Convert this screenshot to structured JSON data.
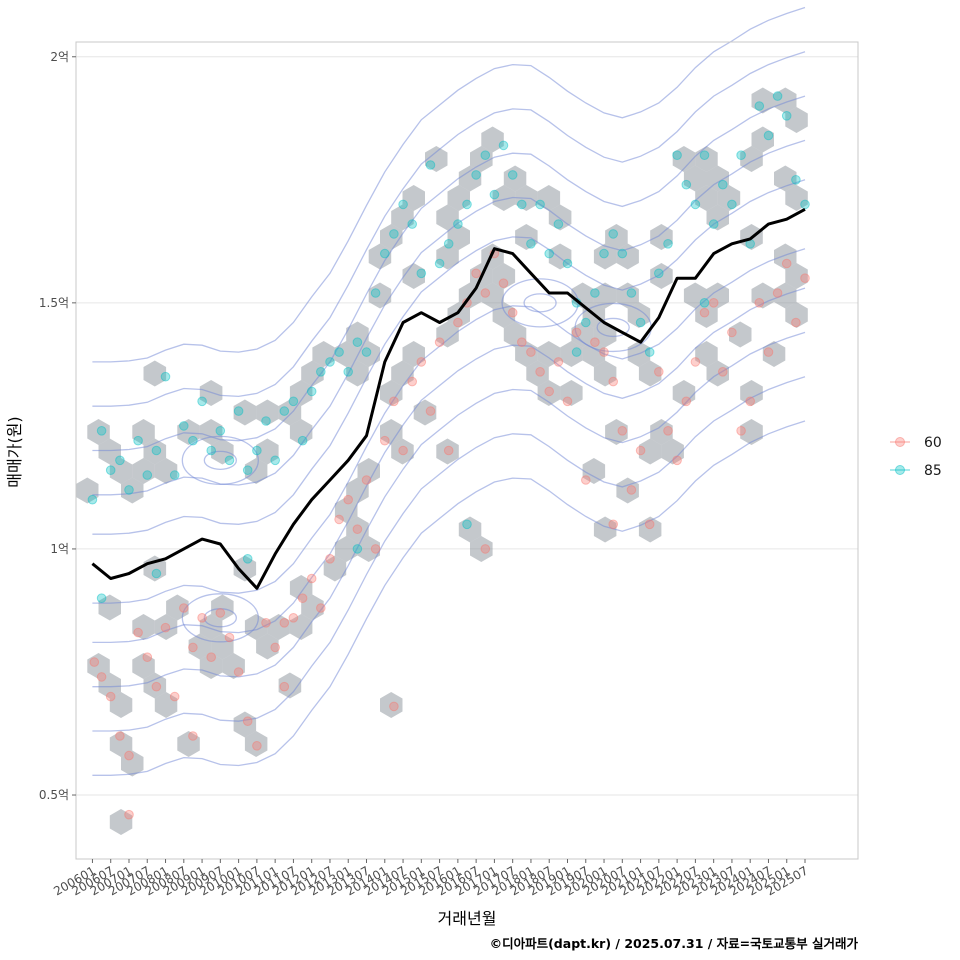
{
  "chart_data": {
    "type": "scatter",
    "title": "",
    "xlabel": "거래년월",
    "ylabel": "매매가(원)",
    "caption": "©디아파트(dapt.kr) / 2025.07.31 / 자료=국토교통부 실거래가",
    "x_tick_labels": [
      "200601",
      "200607",
      "200701",
      "200707",
      "200801",
      "200807",
      "200901",
      "200907",
      "201001",
      "201007",
      "201101",
      "201107",
      "201201",
      "201207",
      "201301",
      "201307",
      "201401",
      "201407",
      "201501",
      "201507",
      "201601",
      "201607",
      "201701",
      "201707",
      "201801",
      "201807",
      "201901",
      "201907",
      "202001",
      "202007",
      "202101",
      "202107",
      "202201",
      "202207",
      "202301",
      "202307",
      "202401",
      "202407",
      "202501",
      "202507"
    ],
    "y_ticks": [
      {
        "value": 0.5,
        "label": "0.5억"
      },
      {
        "value": 1.0,
        "label": "1억"
      },
      {
        "value": 1.5,
        "label": "1.5억"
      },
      {
        "value": 2.0,
        "label": "2억"
      }
    ],
    "xlim": [
      -0.9,
      41.9
    ],
    "ylim": [
      0.37,
      2.03
    ],
    "legend_position": "right",
    "legend": [
      {
        "label": "60",
        "color": "#F8766D"
      },
      {
        "label": "85",
        "color": "#00BFC4"
      }
    ],
    "hex_color": "#8a9199",
    "contour_color": "#6f86d6",
    "trend_color": "#000000",
    "trend_line": {
      "x": [
        0,
        1,
        2,
        3,
        4,
        5,
        6,
        7,
        8,
        9,
        10,
        11,
        12,
        13,
        14,
        15,
        16,
        17,
        18,
        19,
        20,
        21,
        22,
        23,
        24,
        25,
        26,
        27,
        28,
        29,
        30,
        31,
        32,
        33,
        34,
        35,
        36,
        37,
        38,
        39
      ],
      "y": [
        0.97,
        0.94,
        0.95,
        0.97,
        0.98,
        1.0,
        1.02,
        1.01,
        0.96,
        0.92,
        0.99,
        1.05,
        1.1,
        1.14,
        1.18,
        1.23,
        1.38,
        1.46,
        1.48,
        1.46,
        1.48,
        1.53,
        1.61,
        1.6,
        1.56,
        1.52,
        1.52,
        1.49,
        1.46,
        1.44,
        1.42,
        1.47,
        1.55,
        1.55,
        1.6,
        1.62,
        1.63,
        1.66,
        1.67,
        1.69
      ]
    },
    "series": [
      {
        "name": "60",
        "x": [
          0.1,
          0.5,
          1.0,
          1.5,
          2.0,
          2.5,
          3.0,
          3.5,
          4.0,
          4.5,
          5.0,
          5.5,
          6.0,
          6.5,
          7.0,
          7.5,
          8.0,
          8.5,
          9.0,
          9.5,
          10.0,
          10.5,
          11.0,
          11.5,
          12.0,
          12.5,
          13.0,
          13.5,
          14.0,
          14.5,
          15.0,
          15.5,
          16.0,
          16.5,
          17.0,
          17.5,
          18.0,
          18.5,
          19.0,
          19.5,
          20.0,
          20.5,
          21.0,
          21.5,
          22.0,
          22.5,
          23.0,
          23.5,
          24.0,
          24.5,
          25.0,
          25.5,
          26.0,
          26.5,
          27.0,
          27.5,
          28.0,
          28.5,
          29.0,
          29.5,
          30.0,
          30.5,
          31.0,
          31.5,
          32.0,
          32.5,
          33.0,
          33.5,
          34.0,
          34.5,
          35.0,
          35.5,
          36.0,
          36.5,
          37.0,
          37.5,
          38.0,
          38.5,
          39.0,
          2.0,
          5.5,
          10.5,
          16.5,
          21.5,
          28.5
        ],
        "y": [
          0.77,
          0.74,
          0.7,
          0.62,
          0.46,
          0.83,
          0.78,
          0.72,
          0.84,
          0.7,
          0.88,
          0.8,
          0.86,
          0.78,
          0.87,
          0.82,
          0.75,
          0.65,
          0.6,
          0.85,
          0.8,
          0.72,
          0.86,
          0.9,
          0.94,
          0.88,
          0.98,
          1.06,
          1.1,
          1.04,
          1.14,
          1.0,
          1.22,
          1.3,
          1.2,
          1.34,
          1.38,
          1.28,
          1.42,
          1.2,
          1.46,
          1.5,
          1.56,
          1.52,
          1.6,
          1.54,
          1.48,
          1.42,
          1.4,
          1.36,
          1.32,
          1.38,
          1.3,
          1.44,
          1.14,
          1.42,
          1.4,
          1.34,
          1.24,
          1.12,
          1.2,
          1.05,
          1.36,
          1.24,
          1.18,
          1.3,
          1.38,
          1.48,
          1.5,
          1.36,
          1.44,
          1.24,
          1.3,
          1.5,
          1.4,
          1.52,
          1.58,
          1.46,
          1.55,
          0.58,
          0.62,
          0.85,
          0.68,
          1.0,
          1.05
        ]
      },
      {
        "name": "85",
        "x": [
          0.0,
          0.5,
          1.0,
          1.5,
          2.0,
          2.5,
          3.0,
          3.5,
          4.0,
          4.5,
          5.0,
          5.5,
          6.0,
          6.5,
          7.0,
          7.5,
          8.0,
          8.5,
          9.0,
          9.5,
          10.0,
          10.5,
          11.0,
          11.5,
          12.0,
          12.5,
          13.0,
          13.5,
          14.0,
          14.5,
          15.0,
          15.5,
          16.0,
          16.5,
          17.0,
          17.5,
          18.0,
          18.5,
          19.0,
          19.5,
          20.0,
          20.5,
          21.0,
          21.5,
          22.0,
          22.5,
          23.0,
          23.5,
          24.0,
          24.5,
          25.0,
          25.5,
          26.0,
          26.5,
          27.0,
          27.5,
          28.0,
          28.5,
          29.0,
          29.5,
          30.0,
          30.5,
          31.0,
          31.5,
          32.0,
          32.5,
          33.0,
          33.5,
          34.0,
          34.5,
          35.0,
          35.5,
          36.0,
          36.5,
          37.0,
          37.5,
          38.0,
          38.5,
          39.0,
          0.5,
          3.5,
          8.5,
          14.5,
          20.5,
          26.5,
          33.5
        ],
        "y": [
          1.1,
          1.24,
          1.16,
          1.18,
          1.12,
          1.22,
          1.15,
          1.2,
          1.35,
          1.15,
          1.25,
          1.22,
          1.3,
          1.2,
          1.24,
          1.18,
          1.28,
          1.16,
          1.2,
          1.26,
          1.18,
          1.28,
          1.3,
          1.22,
          1.32,
          1.36,
          1.38,
          1.4,
          1.36,
          1.42,
          1.4,
          1.52,
          1.6,
          1.64,
          1.7,
          1.66,
          1.56,
          1.78,
          1.58,
          1.62,
          1.66,
          1.7,
          1.76,
          1.8,
          1.72,
          1.82,
          1.76,
          1.7,
          1.62,
          1.7,
          1.6,
          1.66,
          1.58,
          1.5,
          1.46,
          1.52,
          1.6,
          1.64,
          1.6,
          1.52,
          1.46,
          1.4,
          1.56,
          1.62,
          1.8,
          1.74,
          1.7,
          1.8,
          1.66,
          1.74,
          1.7,
          1.8,
          1.62,
          1.9,
          1.84,
          1.92,
          1.88,
          1.75,
          1.7,
          0.9,
          0.95,
          0.98,
          1.0,
          1.05,
          1.4,
          1.5
        ]
      }
    ]
  }
}
